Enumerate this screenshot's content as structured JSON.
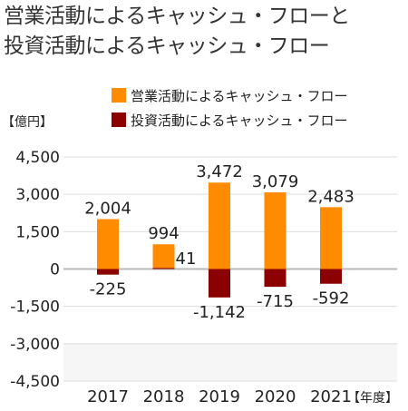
{
  "title_lines": [
    "営業活動によるキャッシュ・フローと",
    "投資活動によるキャッシュ・フロー"
  ],
  "chart_data": {
    "type": "bar",
    "title": "営業活動によるキャッシュ・フローと投資活動によるキャッシュ・フロー",
    "ylabel": "【億円】",
    "xlabel": "【年度】",
    "categories": [
      "2017",
      "2018",
      "2019",
      "2020",
      "2021"
    ],
    "series": [
      {
        "name": "営業活動によるキャッシュ・フロー",
        "color": "#ff8c00",
        "values": [
          2004,
          994,
          3472,
          3079,
          2483
        ],
        "labels": [
          "2,004",
          "994",
          "3,472",
          "3,079",
          "2,483"
        ]
      },
      {
        "name": "投資活動によるキャッシュ・フロー",
        "color": "#8b0000",
        "values": [
          -225,
          41,
          -1142,
          -715,
          -592
        ],
        "labels": [
          "-225",
          "41",
          "-1,142",
          "-715",
          "-592"
        ]
      }
    ],
    "ylim": [
      -4500,
      4500
    ],
    "yticks": [
      4500,
      3000,
      1500,
      0,
      -1500,
      -3000,
      -4500
    ],
    "ytick_labels": [
      "4,500",
      "3,000",
      "1,500",
      "0",
      "-1,500",
      "-3,000",
      "-4,500"
    ],
    "grid": true,
    "legend_position": "top-right"
  }
}
